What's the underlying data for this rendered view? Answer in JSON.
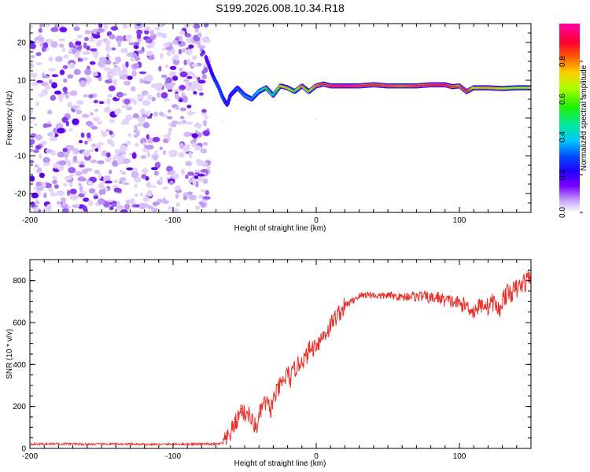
{
  "figure": {
    "title": "S199.2026.008.10.34.R18"
  },
  "chart_data": [
    {
      "type": "heatmap",
      "title": "S199.2026.008.10.34.R18",
      "xlabel": "Height of straight line (km)",
      "ylabel": "Frequency (Hz)",
      "xlim": [
        -200,
        150
      ],
      "ylim": [
        -25,
        25
      ],
      "xticks": [
        -200,
        -100,
        0,
        100
      ],
      "xtick_labels": [
        "-200",
        "-100",
        "0",
        "100"
      ],
      "yticks": [
        -20,
        -10,
        0,
        10,
        20
      ],
      "ytick_labels": [
        "-20",
        "-10",
        "0",
        "10",
        "20"
      ],
      "noise_region_x": [
        -200,
        -75
      ],
      "ridge": {
        "x": [
          -77,
          -74,
          -72,
          -70,
          -68,
          -66,
          -64,
          -62,
          -60,
          -55,
          -50,
          -45,
          -40,
          -35,
          -30,
          -25,
          -20,
          -15,
          -10,
          -5,
          0,
          5,
          10,
          20,
          30,
          40,
          50,
          60,
          70,
          80,
          90,
          95,
          100,
          105,
          110,
          120,
          130,
          140,
          150
        ],
        "frequency_hz": [
          16,
          13,
          11,
          9.5,
          8,
          6,
          4.5,
          3.5,
          6,
          8,
          6,
          5,
          7,
          8,
          6,
          8.5,
          8,
          7,
          8.5,
          7,
          8.5,
          9,
          8.5,
          8.5,
          8.5,
          8.8,
          8.5,
          8.5,
          8.5,
          8.8,
          8.8,
          8.3,
          8.5,
          7,
          8,
          8,
          7.8,
          8,
          8
        ],
        "amplitude": [
          0.15,
          0.2,
          0.25,
          0.3,
          0.3,
          0.3,
          0.3,
          0.25,
          0.25,
          0.3,
          0.35,
          0.35,
          0.4,
          0.55,
          0.45,
          0.7,
          0.75,
          0.55,
          0.8,
          0.6,
          0.8,
          0.85,
          0.9,
          0.95,
          0.9,
          0.85,
          0.85,
          0.8,
          0.85,
          0.9,
          0.95,
          0.85,
          0.8,
          0.9,
          0.7,
          0.75,
          0.7,
          0.65,
          0.65
        ]
      },
      "colorbar": {
        "label": "Normalized spectral amplitude",
        "range": [
          0,
          1
        ],
        "ticks": [
          0.0,
          0.2,
          0.4,
          0.6,
          0.8
        ],
        "tick_labels": [
          "0.0",
          "0.2",
          "0.4",
          "0.6",
          "0.8"
        ]
      }
    },
    {
      "type": "line",
      "xlabel": "Height of straight line (km)",
      "ylabel": "SNR (10 * v/v)",
      "xlim": [
        -200,
        150
      ],
      "ylim": [
        0,
        900
      ],
      "xticks": [
        -200,
        -100,
        0,
        100
      ],
      "xtick_labels": [
        "-200",
        "-100",
        "0",
        "100"
      ],
      "yticks": [
        0,
        200,
        400,
        600,
        800
      ],
      "ytick_labels": [
        "0",
        "200",
        "400",
        "600",
        "800"
      ],
      "series": [
        {
          "name": "SNR",
          "color": "#e8302a",
          "x": [
            -200,
            -180,
            -160,
            -140,
            -120,
            -100,
            -80,
            -70,
            -65,
            -62,
            -58,
            -55,
            -52,
            -50,
            -48,
            -45,
            -42,
            -40,
            -38,
            -35,
            -32,
            -30,
            -28,
            -25,
            -22,
            -20,
            -18,
            -15,
            -12,
            -10,
            -8,
            -5,
            -2,
            0,
            2,
            5,
            8,
            10,
            12,
            15,
            18,
            20,
            22,
            25,
            28,
            30,
            35,
            40,
            45,
            50,
            55,
            60,
            65,
            70,
            75,
            80,
            85,
            90,
            95,
            100,
            105,
            108,
            110,
            112,
            115,
            118,
            120,
            122,
            125,
            128,
            130,
            132,
            135,
            138,
            140,
            143,
            145,
            148,
            150
          ],
          "y": [
            20,
            22,
            20,
            21,
            19,
            20,
            21,
            20,
            25,
            45,
            100,
            140,
            190,
            160,
            175,
            130,
            100,
            140,
            200,
            220,
            180,
            230,
            260,
            300,
            330,
            360,
            330,
            380,
            400,
            430,
            420,
            470,
            480,
            500,
            510,
            540,
            560,
            590,
            610,
            640,
            660,
            680,
            690,
            700,
            720,
            725,
            735,
            730,
            725,
            730,
            725,
            720,
            728,
            724,
            726,
            715,
            720,
            705,
            700,
            690,
            680,
            665,
            650,
            670,
            680,
            695,
            670,
            700,
            690,
            650,
            710,
            730,
            740,
            750,
            760,
            775,
            790,
            805,
            840
          ]
        }
      ]
    }
  ]
}
